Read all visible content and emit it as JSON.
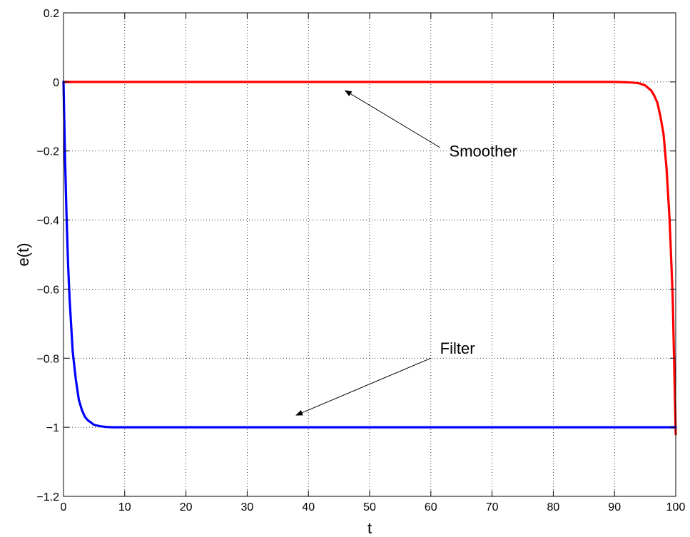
{
  "chart_data": {
    "type": "line",
    "title": "",
    "xlabel": "t",
    "ylabel": "e(t)",
    "xlim": [
      0,
      100
    ],
    "ylim": [
      -1.2,
      0.2
    ],
    "xticks": [
      0,
      10,
      20,
      30,
      40,
      50,
      60,
      70,
      80,
      90,
      100
    ],
    "yticks": [
      0.2,
      0,
      -0.2,
      -0.4,
      -0.6,
      -0.8,
      -1,
      -1.2
    ],
    "ytick_labels": [
      "0.2",
      "0",
      "−0.2",
      "−0.4",
      "−0.6",
      "−0.8",
      "−1",
      "−1.2"
    ],
    "grid": true,
    "series": [
      {
        "color": "#ff0000",
        "x": [
          0,
          10,
          20,
          30,
          40,
          50,
          60,
          70,
          80,
          90,
          92,
          93,
          94,
          95,
          96,
          96.5,
          97,
          97.5,
          98,
          98.5,
          99,
          99.5,
          100
        ],
        "y": [
          0,
          0,
          0,
          0,
          0,
          0,
          0,
          0,
          0,
          0,
          -0.001,
          -0.002,
          -0.004,
          -0.01,
          -0.025,
          -0.04,
          -0.06,
          -0.1,
          -0.15,
          -0.25,
          -0.4,
          -0.62,
          -1.02
        ]
      },
      {
        "color": "#0000ff",
        "x": [
          0,
          0.25,
          0.5,
          0.75,
          1,
          1.5,
          2,
          2.5,
          3,
          3.5,
          4,
          5,
          6,
          7,
          8,
          10,
          20,
          30,
          40,
          50,
          60,
          70,
          80,
          90,
          100
        ],
        "y": [
          0,
          -0.22,
          -0.39,
          -0.53,
          -0.63,
          -0.78,
          -0.86,
          -0.92,
          -0.95,
          -0.97,
          -0.98,
          -0.993,
          -0.997,
          -0.999,
          -1,
          -1,
          -1,
          -1,
          -1,
          -1,
          -1,
          -1,
          -1,
          -1,
          -1
        ]
      }
    ],
    "annotations": [
      {
        "text": "Smoother",
        "text_x": 63,
        "text_y": -0.2,
        "arrow_from": [
          61.5,
          -0.19
        ],
        "arrow_to": [
          46,
          -0.025
        ]
      },
      {
        "text": "Filter",
        "text_x": 61.5,
        "text_y": -0.77,
        "arrow_from": [
          60,
          -0.8
        ],
        "arrow_to": [
          38,
          -0.965
        ]
      }
    ]
  }
}
